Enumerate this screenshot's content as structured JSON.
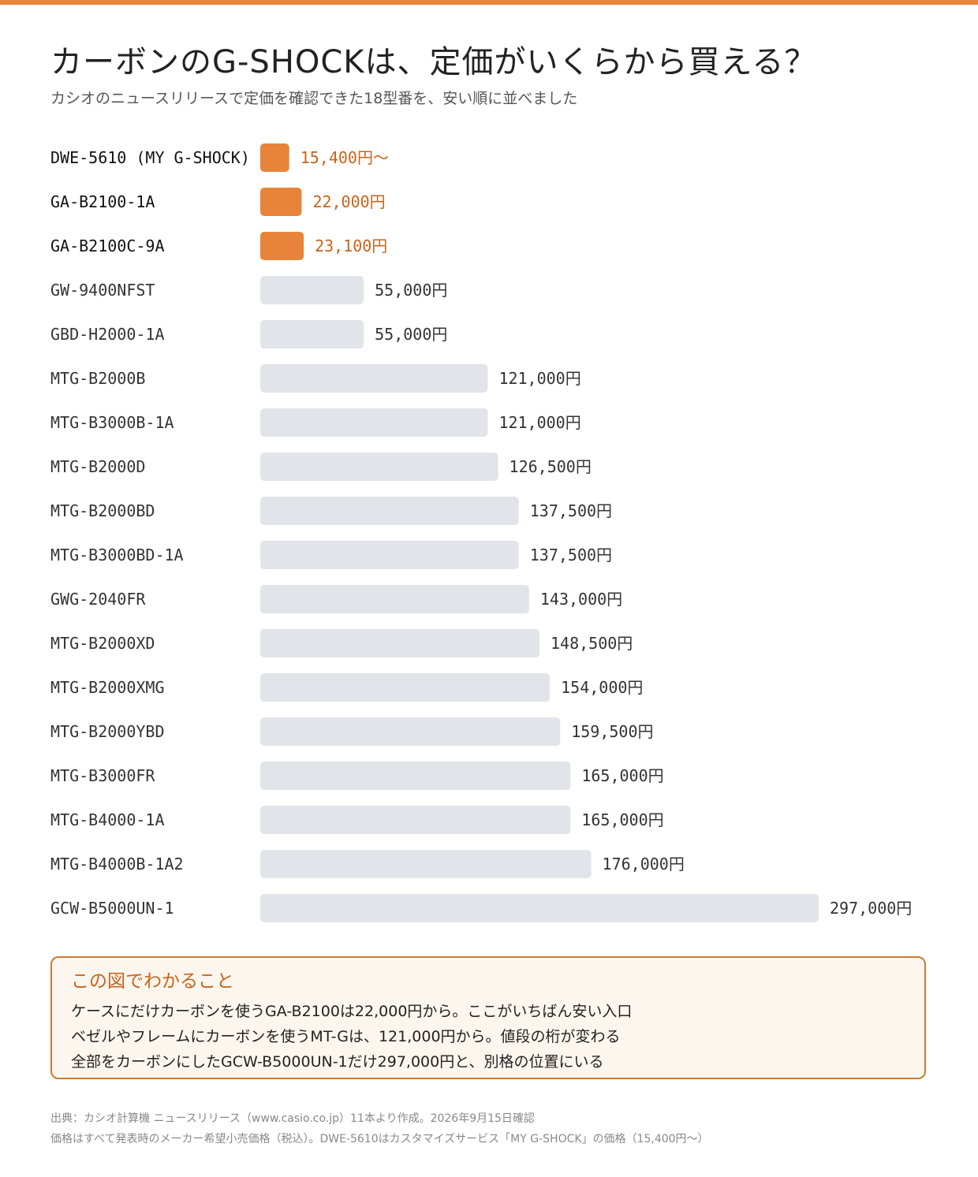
{
  "title": "カーボンのG-SHOCKは、定価がいくらから買える？",
  "subtitle": "カシオのニュースリリースで定価を確認できた18型番を、安い順に並べました",
  "colors": {
    "accent": "#e8843a",
    "accent_text": "#c8641c",
    "bar_default": "#e1e4e8",
    "callout_border": "#c77a36",
    "callout_bg": "#fdf6ee"
  },
  "chart_data": {
    "type": "bar",
    "orientation": "horizontal",
    "xlim": [
      0,
      297000
    ],
    "grid": false,
    "categories": [
      "DWE-5610 (MY G-SHOCK)",
      "GA-B2100-1A",
      "GA-B2100C-9A",
      "GW-9400NFST",
      "GBD-H2000-1A",
      "MTG-B2000B",
      "MTG-B3000B-1A",
      "MTG-B2000D",
      "MTG-B2000BD",
      "MTG-B3000BD-1A",
      "GWG-2040FR",
      "MTG-B2000XD",
      "MTG-B2000XMG",
      "MTG-B2000YBD",
      "MTG-B3000FR",
      "MTG-B4000-1A",
      "MTG-B4000B-1A2",
      "GCW-B5000UN-1"
    ],
    "values": [
      15400,
      22000,
      23100,
      55000,
      55000,
      121000,
      121000,
      126500,
      137500,
      137500,
      143000,
      148500,
      154000,
      159500,
      165000,
      165000,
      176000,
      297000
    ],
    "value_labels": [
      "15,400円～",
      "22,000円",
      "23,100円",
      "55,000円",
      "55,000円",
      "121,000円",
      "121,000円",
      "126,500円",
      "137,500円",
      "137,500円",
      "143,000円",
      "148,500円",
      "154,000円",
      "159,500円",
      "165,000円",
      "165,000円",
      "176,000円",
      "297,000円"
    ],
    "highlighted": [
      true,
      true,
      true,
      false,
      false,
      false,
      false,
      false,
      false,
      false,
      false,
      false,
      false,
      false,
      false,
      false,
      false,
      false
    ]
  },
  "callout": {
    "title": "この図でわかること",
    "items": [
      "ケースにだけカーボンを使うGA-B2100は22,000円から。ここがいちばん安い入口",
      "ベゼルやフレームにカーボンを使うMT-Gは、121,000円から。値段の桁が変わる",
      "全部をカーボンにしたGCW-B5000UN-1だけ297,000円と、別格の位置にいる"
    ]
  },
  "footer": {
    "source": "出典：カシオ計算機 ニュースリリース（www.casio.co.jp）11本より作成。2026年9月15日確認",
    "note": "価格はすべて発表時のメーカー希望小売価格（税込）。DWE-5610はカスタマイズサービス「MY G-SHOCK」の価格（15,400円～）"
  }
}
